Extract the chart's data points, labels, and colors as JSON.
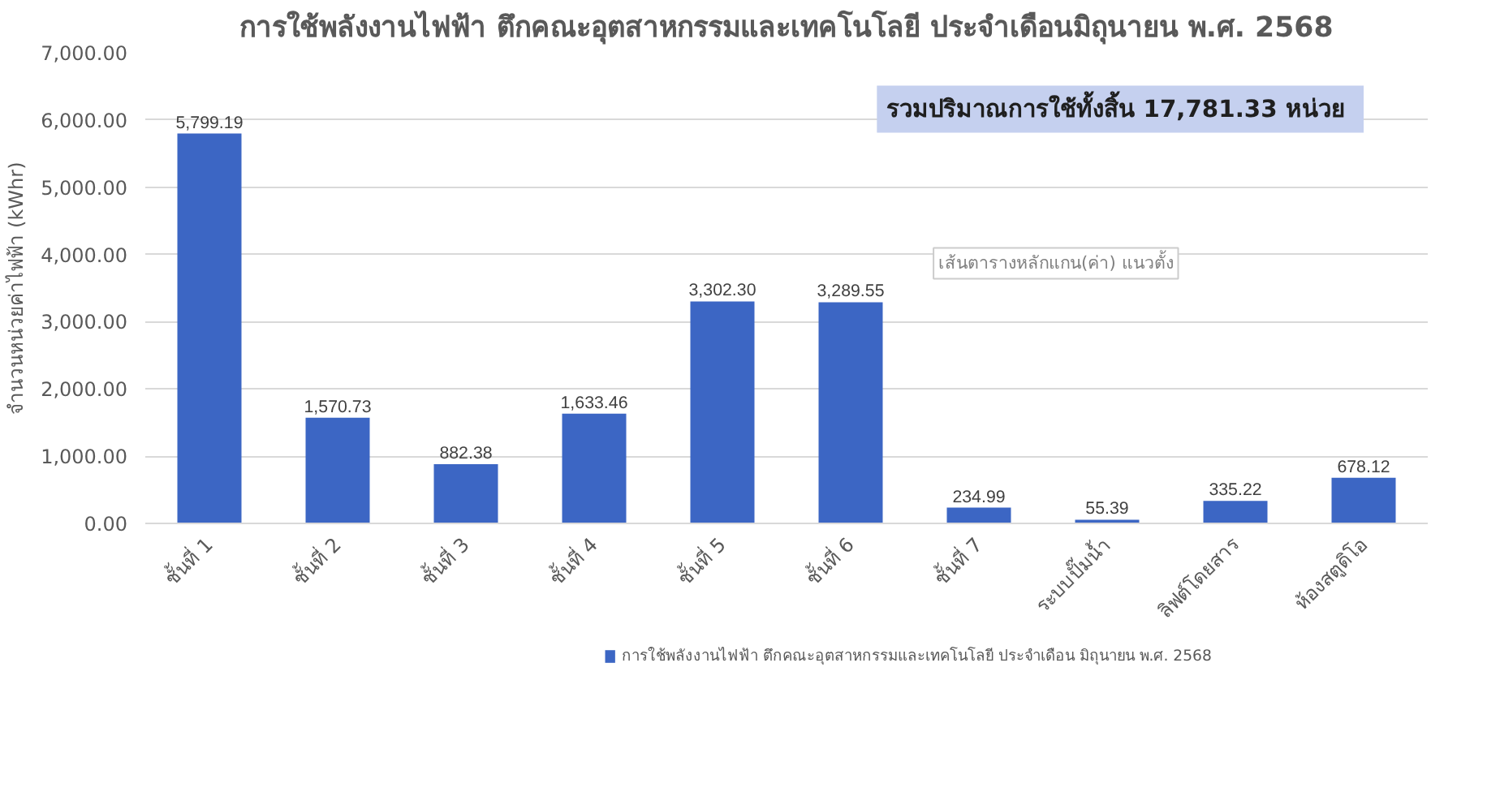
{
  "chart_data": {
    "type": "bar",
    "title": "การใช้พลังงานไฟฟ้า ตึกคณะอุตสาหกรรมและเทคโนโลยี ประจำเดือนมิถุนายน พ.ศ. 2568",
    "ylabel": "จำนวนหน่วยค่าไฟฟ้า (kWhr)",
    "categories": [
      "ชั้นที่ 1",
      "ชั้นที่ 2",
      "ชั้นที่ 3",
      "ชั้นที่ 4",
      "ชั้นที่ 5",
      "ชั้นที่ 6",
      "ชั้นที่ 7",
      "ระบบปั๊มน้ำ",
      "ลิฟต์โดยสาร",
      "ห้องสตูดิโอ"
    ],
    "series": [
      {
        "name": "การใช้พลังงานไฟฟ้า ตึกคณะอุตสาหกรรมและเทคโนโลยี ประจำเดือน มิถุนายน พ.ศ. 2568",
        "color": "#3c66c4",
        "values": [
          5799.19,
          1570.73,
          882.38,
          1633.46,
          3302.3,
          3289.55,
          234.99,
          55.39,
          335.22,
          678.12
        ],
        "value_labels": [
          "5,799.19",
          "1,570.73",
          "882.38",
          "1,633.46",
          "3,302.30",
          "3,289.55",
          "234.99",
          "55.39",
          "335.22",
          "678.12"
        ]
      }
    ],
    "ylim": [
      0,
      7000
    ],
    "yticks": [
      {
        "value": 0,
        "label": "0.00"
      },
      {
        "value": 1000,
        "label": "1,000.00"
      },
      {
        "value": 2000,
        "label": "2,000.00"
      },
      {
        "value": 3000,
        "label": "3,000.00"
      },
      {
        "value": 4000,
        "label": "4,000.00"
      },
      {
        "value": 5000,
        "label": "5,000.00"
      },
      {
        "value": 6000,
        "label": "6,000.00"
      },
      {
        "value": 7000,
        "label": "7,000.00"
      }
    ],
    "grid": "y",
    "legend": "bottom",
    "annotations": [
      "รวมปริมาณการใช้ทั้งสิ้น  17,781.33 หน่วย",
      "เส้นตารางหลักแกน(ค่า) แนวตั้ง"
    ]
  }
}
